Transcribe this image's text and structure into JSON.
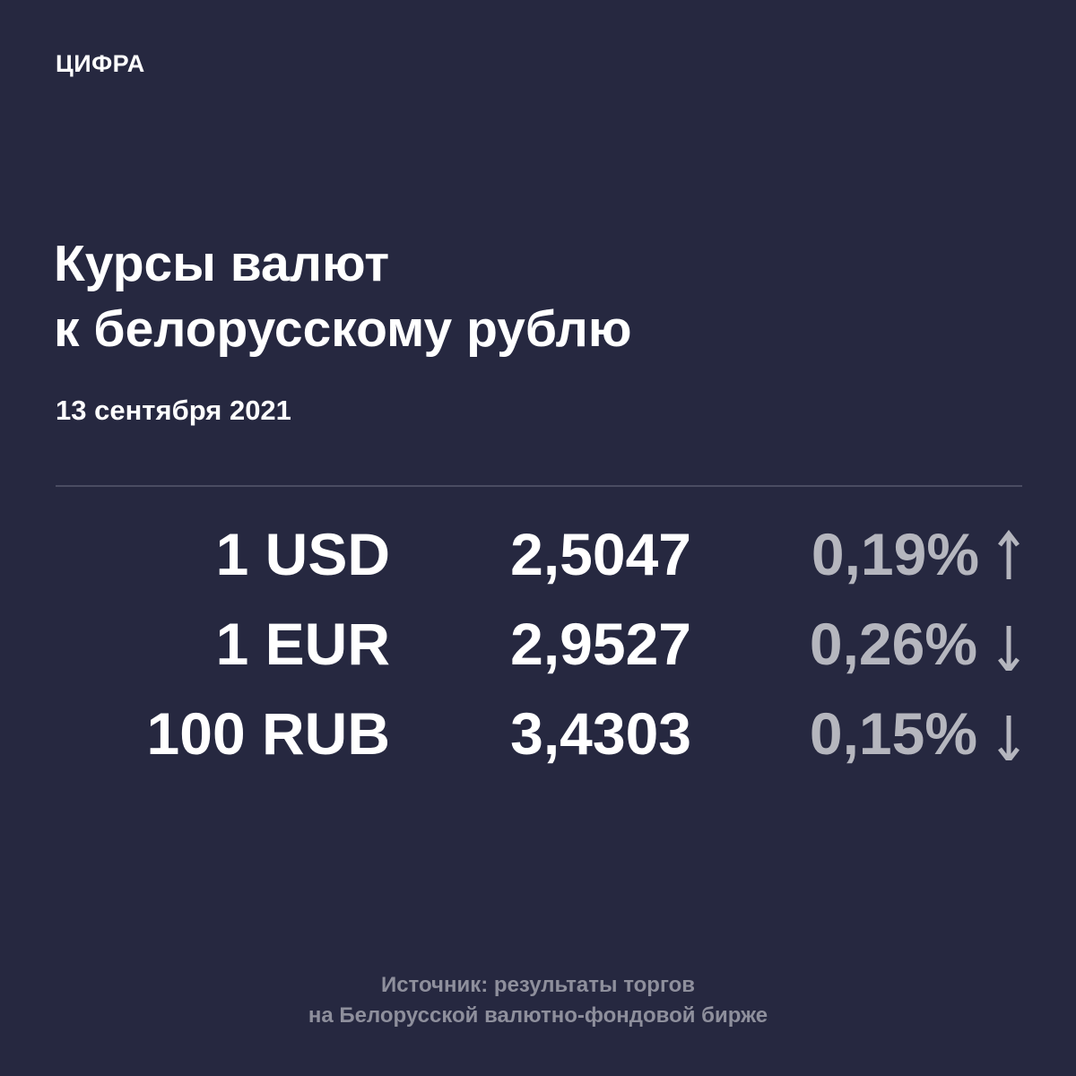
{
  "brand": "ЦИФРА",
  "title_line1": "Курсы валют",
  "title_line2": "к белорусскому рублю",
  "date": "13 сентября 2021",
  "rates": [
    {
      "currency": "1 USD",
      "value": "2,5047",
      "change": "0,19%",
      "direction": "up"
    },
    {
      "currency": "1 EUR",
      "value": "2,9527",
      "change": "0,26%",
      "direction": "down"
    },
    {
      "currency": "100 RUB",
      "value": "3,4303",
      "change": "0,15%",
      "direction": "down"
    }
  ],
  "source_line1": "Источник: результаты торгов",
  "source_line2": "на Белорусской валютно-фондовой бирже",
  "colors": {
    "background": "#262840",
    "text": "#ffffff",
    "change": "#b5b6be",
    "source": "#8e8f9c"
  }
}
